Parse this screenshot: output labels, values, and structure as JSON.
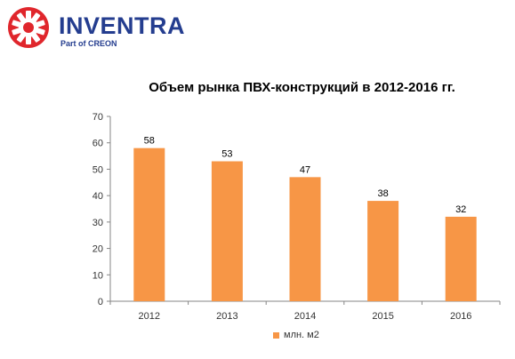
{
  "logo": {
    "name": "INVENTRA",
    "subtitle": "Part of CREON",
    "colors": {
      "ring": "#e0262c",
      "text": "#243d8f"
    }
  },
  "chart_data": {
    "type": "bar",
    "title": "Объем рынка ПВХ-конструкций в 2012-2016 гг.",
    "categories": [
      "2012",
      "2013",
      "2014",
      "2015",
      "2016"
    ],
    "series": [
      {
        "name": "млн. м2",
        "values": [
          58,
          53,
          47,
          38,
          32
        ],
        "color": "#f79646"
      }
    ],
    "data_labels": [
      "58",
      "53",
      "47",
      "38",
      "32"
    ],
    "ylim": [
      0,
      70
    ],
    "yticks": [
      0,
      10,
      20,
      30,
      40,
      50,
      60,
      70
    ],
    "grid": false,
    "legend": "bottom",
    "xlabel": "",
    "ylabel": ""
  }
}
